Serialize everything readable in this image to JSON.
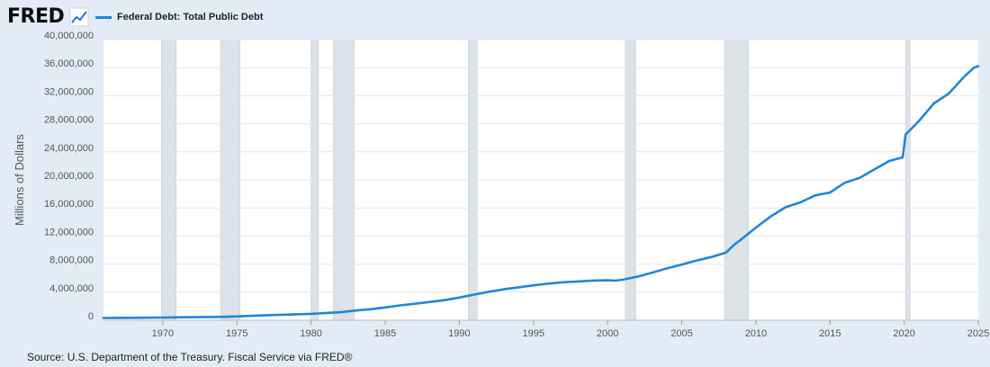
{
  "brand": {
    "logo_text": "FRED",
    "accent": "#1a73e8"
  },
  "legend": {
    "label": "Federal Debt: Total Public Debt",
    "color": "#1f86d9"
  },
  "source": "Source: U.S. Department of the Treasury. Fiscal Service via FRED®",
  "chart_data": {
    "type": "line",
    "title": "Federal Debt: Total Public Debt",
    "xlabel": "",
    "ylabel": "Millions of Dollars",
    "xlim": [
      1966,
      2025
    ],
    "ylim": [
      0,
      40000000
    ],
    "x_ticks": [
      1970,
      1975,
      1980,
      1985,
      1990,
      1995,
      2000,
      2005,
      2010,
      2015,
      2020,
      2025
    ],
    "y_ticks": [
      0,
      4000000,
      8000000,
      12000000,
      16000000,
      20000000,
      24000000,
      28000000,
      32000000,
      36000000,
      40000000
    ],
    "y_tick_labels": [
      "0",
      "4,000,000",
      "8,000,000",
      "12,000,000",
      "16,000,000",
      "20,000,000",
      "24,000,000",
      "28,000,000",
      "32,000,000",
      "36,000,000",
      "40,000,000"
    ],
    "grid": true,
    "recessions": [
      [
        1969.9,
        1970.9
      ],
      [
        1973.9,
        1975.2
      ],
      [
        1980.0,
        1980.5
      ],
      [
        1981.5,
        1982.9
      ],
      [
        1990.6,
        1991.2
      ],
      [
        2001.2,
        2001.9
      ],
      [
        2007.9,
        2009.5
      ],
      [
        2020.1,
        2020.4
      ]
    ],
    "series": [
      {
        "name": "Federal Debt: Total Public Debt",
        "color": "#1f86d9",
        "x": [
          1966,
          1968,
          1970,
          1972,
          1974,
          1975,
          1976,
          1978,
          1980,
          1982,
          1983,
          1984,
          1985,
          1986,
          1987,
          1988,
          1989,
          1990,
          1991,
          1992,
          1993,
          1994,
          1995,
          1996,
          1997,
          1998,
          1999,
          2000,
          2000.5,
          2001,
          2002,
          2003,
          2004,
          2005,
          2006,
          2007,
          2008,
          2008.5,
          2009,
          2010,
          2011,
          2012,
          2013,
          2014,
          2015,
          2016,
          2017,
          2018,
          2019,
          2019.9,
          2020.1,
          2020.3,
          2021,
          2022,
          2023,
          2024,
          2024.7,
          2025
        ],
        "values": [
          320000,
          350000,
          380000,
          430000,
          480000,
          540000,
          630000,
          780000,
          910000,
          1140000,
          1380000,
          1570000,
          1820000,
          2120000,
          2350000,
          2600000,
          2860000,
          3230000,
          3660000,
          4060000,
          4410000,
          4690000,
          4970000,
          5220000,
          5410000,
          5530000,
          5660000,
          5690000,
          5640000,
          5770000,
          6200000,
          6780000,
          7380000,
          7930000,
          8510000,
          9010000,
          9650000,
          10700000,
          11500000,
          13200000,
          14800000,
          16100000,
          16800000,
          17800000,
          18200000,
          19600000,
          20300000,
          21500000,
          22700000,
          23200000,
          26500000,
          26900000,
          28400000,
          30900000,
          32300000,
          34600000,
          36000000,
          36200000
        ]
      }
    ]
  }
}
